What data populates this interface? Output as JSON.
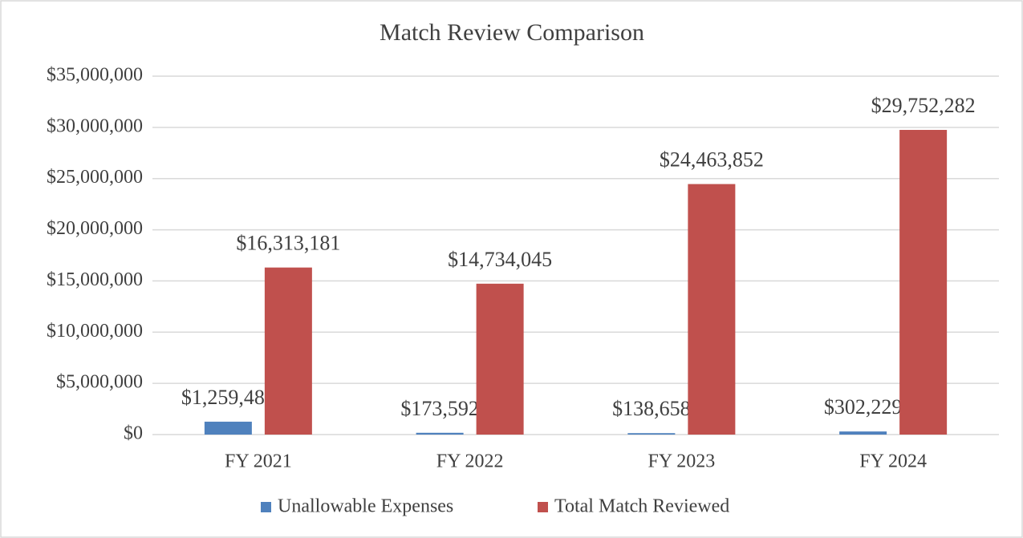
{
  "chart_data": {
    "type": "bar",
    "title": "Match Review Comparison",
    "categories": [
      "FY 2021",
      "FY 2022",
      "FY 2023",
      "FY 2024"
    ],
    "series": [
      {
        "name": "Unallowable Expenses",
        "color": "#4f81bd",
        "values": [
          1259481,
          173592,
          138658,
          302229
        ],
        "value_labels": [
          "$1,259,481",
          "$173,592",
          "$138,658",
          "$302,229"
        ]
      },
      {
        "name": "Total Match Reviewed",
        "color": "#c0504d",
        "values": [
          16313181,
          14734045,
          24463852,
          29752282
        ],
        "value_labels": [
          "$16,313,181",
          "$14,734,045",
          "$24,463,852",
          "$29,752,282"
        ]
      }
    ],
    "ylim": [
      0,
      35000000
    ],
    "yticks": [
      {
        "value": 0,
        "label": "$0"
      },
      {
        "value": 5000000,
        "label": "$5,000,000"
      },
      {
        "value": 10000000,
        "label": "$10,000,000"
      },
      {
        "value": 15000000,
        "label": "$15,000,000"
      },
      {
        "value": 20000000,
        "label": "$20,000,000"
      },
      {
        "value": 25000000,
        "label": "$25,000,000"
      },
      {
        "value": 30000000,
        "label": "$30,000,000"
      },
      {
        "value": 35000000,
        "label": "$35,000,000"
      }
    ],
    "grid": true,
    "legend": "bottom"
  }
}
